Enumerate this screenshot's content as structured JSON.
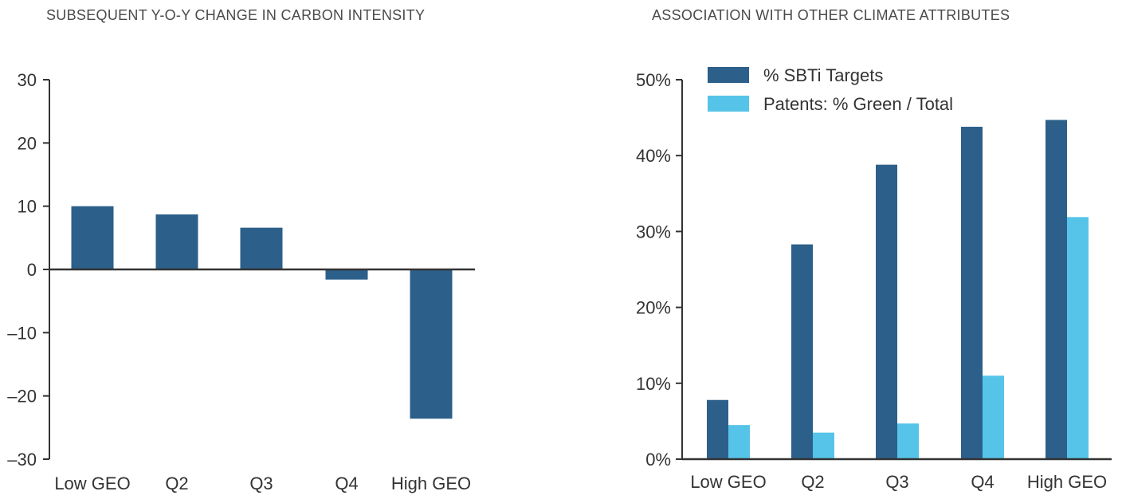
{
  "colors": {
    "dark_blue": "#2c5f8a",
    "light_blue": "#56c4e8",
    "axis": "#333333"
  },
  "chart_data": [
    {
      "type": "bar",
      "title": "SUBSEQUENT Y-O-Y CHANGE IN CARBON INTENSITY",
      "categories": [
        "Low GEO",
        "Q2",
        "Q3",
        "Q4",
        "High GEO"
      ],
      "values": [
        10,
        8.7,
        6.6,
        -1.6,
        -23.6
      ],
      "ylim": [
        -30,
        30
      ],
      "yticks": [
        30,
        20,
        10,
        0,
        -10,
        -20,
        -30
      ],
      "ytick_labels": [
        "30",
        "20",
        "10",
        "0",
        "–10",
        "–20",
        "–30"
      ],
      "xlabel": "",
      "ylabel": "",
      "grid": false
    },
    {
      "type": "bar",
      "title": "ASSOCIATION WITH OTHER CLIMATE ATTRIBUTES",
      "categories": [
        "Low GEO",
        "Q2",
        "Q3",
        "Q4",
        "High GEO"
      ],
      "series": [
        {
          "name": "% SBTi Targets",
          "values": [
            7.8,
            28.3,
            38.8,
            43.8,
            44.7
          ]
        },
        {
          "name": "Patents: % Green / Total",
          "values": [
            4.5,
            3.5,
            4.7,
            11.0,
            31.9
          ]
        }
      ],
      "ylim": [
        0,
        50
      ],
      "yticks": [
        0,
        10,
        20,
        30,
        40,
        50
      ],
      "ytick_labels": [
        "0%",
        "10%",
        "20%",
        "30%",
        "40%",
        "50%"
      ],
      "xlabel": "",
      "ylabel": "",
      "legend": "top-left",
      "grid": false
    }
  ]
}
